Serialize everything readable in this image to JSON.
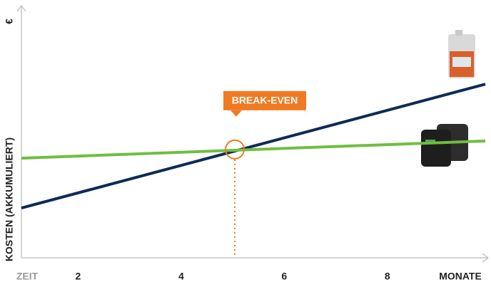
{
  "chart_data": {
    "type": "line",
    "y_label": "KOSTEN (AKKUMULIERT)",
    "y_unit": "€",
    "x_start_label": "ZEIT",
    "x_end_label": "MONATE",
    "x": [
      0.9,
      9.9
    ],
    "series": [
      {
        "color": "#0d2b55",
        "values": [
          19.4,
          69.1
        ]
      },
      {
        "color": "#6dbf3f",
        "values": [
          39.4,
          46.3
        ]
      }
    ],
    "xlim": [
      0.9,
      9.9
    ],
    "ylim": [
      0,
      100
    ],
    "xticks": [
      2,
      4,
      6,
      8
    ],
    "annotation": {
      "text": "BREAK-EVEN",
      "x": 5.04,
      "y": 42.9,
      "color": "#f07a22"
    }
  }
}
